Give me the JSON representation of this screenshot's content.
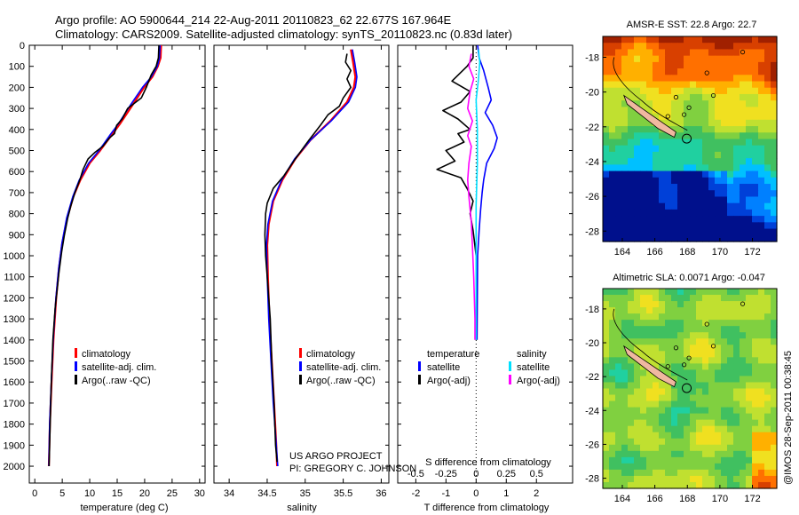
{
  "header": {
    "title_line1": "Argo profile: AO 5900644_214 22-Aug-2011 20110823_62 22.677S 167.964E",
    "title_line2": "Climatology: CARS2009. Satellite-adjusted climatology: synTS_20110823.nc (0.83d later)"
  },
  "credit": "US ARGO PROJECT",
  "pi": "PI: GREGORY C. JOHNSON",
  "timestamp": "@IMOS 28-Sep-2011 00:38:45",
  "colors": {
    "climatology": "#ff0000",
    "satellite": "#0000ff",
    "argo": "#000000",
    "sal_satellite": "#00e0ff",
    "sal_argo": "#ff00ff"
  },
  "depth_axis": {
    "ticks": [
      0,
      100,
      200,
      300,
      400,
      500,
      600,
      700,
      800,
      900,
      1000,
      1100,
      1200,
      1300,
      1400,
      1500,
      1600,
      1700,
      1800,
      1900,
      2000
    ],
    "labels": [
      "0",
      "100",
      "200",
      "300",
      "400",
      "500",
      "600",
      "700",
      "800",
      "900",
      "1000",
      "1100",
      "1200",
      "1300",
      "1400",
      "1500",
      "1600",
      "1700",
      "1800",
      "1900",
      "2000"
    ],
    "range": [
      0,
      2080
    ]
  },
  "chart_data": [
    {
      "type": "line",
      "name": "temperature",
      "xlabel": "temperature (deg C)",
      "xlim": [
        -1,
        31
      ],
      "xticks": [
        0,
        5,
        10,
        15,
        20,
        25,
        30
      ],
      "xtick_labels": [
        "0",
        "5",
        "10",
        "15",
        "20",
        "25",
        "30"
      ],
      "ylim": [
        2080,
        0
      ],
      "legend": {
        "placement": "lower-left",
        "entries": [
          "climatology",
          "satellite-adj. clim.",
          "Argo(..raw -QC)"
        ]
      },
      "series": [
        {
          "name": "climatology",
          "color": "#ff0000",
          "points": [
            [
              23,
              0
            ],
            [
              22.9,
              60
            ],
            [
              22.4,
              100
            ],
            [
              21.4,
              150
            ],
            [
              19.9,
              200
            ],
            [
              17.9,
              280
            ],
            [
              15.6,
              370
            ],
            [
              13.9,
              430
            ],
            [
              11.9,
              500
            ],
            [
              10,
              560
            ],
            [
              8.3,
              640
            ],
            [
              7,
              720
            ],
            [
              5.9,
              820
            ],
            [
              5,
              940
            ],
            [
              4.4,
              1060
            ],
            [
              3.9,
              1200
            ],
            [
              3.4,
              1400
            ],
            [
              3.05,
              1600
            ],
            [
              2.75,
              1800
            ],
            [
              2.55,
              2000
            ]
          ]
        },
        {
          "name": "satellite-adj. clim.",
          "color": "#0000ff",
          "points": [
            [
              22.8,
              0
            ],
            [
              22.7,
              60
            ],
            [
              22.3,
              100
            ],
            [
              21.2,
              150
            ],
            [
              19.6,
              200
            ],
            [
              17.5,
              280
            ],
            [
              15.3,
              370
            ],
            [
              13.6,
              430
            ],
            [
              11.7,
              500
            ],
            [
              9.8,
              560
            ],
            [
              8.1,
              640
            ],
            [
              6.9,
              720
            ],
            [
              5.8,
              820
            ],
            [
              4.95,
              940
            ],
            [
              4.35,
              1060
            ],
            [
              3.85,
              1200
            ],
            [
              3.35,
              1400
            ],
            [
              3,
              1600
            ],
            [
              2.7,
              1800
            ],
            [
              2.55,
              2000
            ]
          ]
        },
        {
          "name": "Argo(..raw -QC)",
          "color": "#000000",
          "points": [
            [
              22.6,
              0
            ],
            [
              22.5,
              60
            ],
            [
              22.1,
              100
            ],
            [
              21.2,
              140
            ],
            [
              20.3,
              200
            ],
            [
              19.4,
              250
            ],
            [
              16.9,
              300
            ],
            [
              15.9,
              350
            ],
            [
              14.9,
              380
            ],
            [
              14.5,
              420
            ],
            [
              13.6,
              440
            ],
            [
              12.4,
              480
            ],
            [
              10.9,
              510
            ],
            [
              9.7,
              540
            ],
            [
              8.8,
              590
            ],
            [
              8.2,
              640
            ],
            [
              7.3,
              700
            ],
            [
              6.6,
              760
            ],
            [
              6,
              820
            ],
            [
              5.4,
              900
            ],
            [
              4.9,
              980
            ],
            [
              4.4,
              1080
            ],
            [
              4,
              1180
            ],
            [
              3.7,
              1250
            ],
            [
              3.3,
              1400
            ],
            [
              3,
              1600
            ],
            [
              2.8,
              1800
            ],
            [
              2.6,
              2000
            ]
          ]
        }
      ]
    },
    {
      "type": "line",
      "name": "salinity",
      "xlabel": "salinity",
      "xlim": [
        33.8,
        36.1
      ],
      "xticks": [
        34,
        34.5,
        35,
        35.5,
        36
      ],
      "xtick_labels": [
        "34",
        "34.5",
        "35",
        "35.5",
        "36"
      ],
      "ylim": [
        2080,
        0
      ],
      "legend": {
        "placement": "lower-left",
        "entries": [
          "climatology",
          "satellite-adj. clim.",
          "Argo(..raw -QC)"
        ]
      },
      "series": [
        {
          "name": "climatology",
          "color": "#ff0000",
          "points": [
            [
              35.6,
              20
            ],
            [
              35.63,
              80
            ],
            [
              35.66,
              150
            ],
            [
              35.64,
              200
            ],
            [
              35.55,
              270
            ],
            [
              35.33,
              360
            ],
            [
              35.07,
              450
            ],
            [
              34.87,
              540
            ],
            [
              34.7,
              640
            ],
            [
              34.58,
              740
            ],
            [
              34.52,
              850
            ],
            [
              34.5,
              950
            ],
            [
              34.51,
              1100
            ],
            [
              34.53,
              1300
            ],
            [
              34.56,
              1500
            ],
            [
              34.59,
              1700
            ],
            [
              34.62,
              1900
            ],
            [
              34.63,
              2000
            ]
          ]
        },
        {
          "name": "satellite-adj. clim.",
          "color": "#0000ff",
          "points": [
            [
              35.62,
              20
            ],
            [
              35.65,
              80
            ],
            [
              35.68,
              150
            ],
            [
              35.66,
              200
            ],
            [
              35.57,
              270
            ],
            [
              35.34,
              360
            ],
            [
              35.07,
              450
            ],
            [
              34.86,
              540
            ],
            [
              34.69,
              640
            ],
            [
              34.57,
              740
            ],
            [
              34.51,
              850
            ],
            [
              34.49,
              950
            ],
            [
              34.5,
              1100
            ],
            [
              34.52,
              1300
            ],
            [
              34.55,
              1500
            ],
            [
              34.58,
              1700
            ],
            [
              34.62,
              1900
            ],
            [
              34.64,
              2000
            ]
          ]
        },
        {
          "name": "Argo(..raw -QC)",
          "color": "#000000",
          "points": [
            [
              35.55,
              40
            ],
            [
              35.53,
              80
            ],
            [
              35.6,
              120
            ],
            [
              35.55,
              160
            ],
            [
              35.6,
              200
            ],
            [
              35.5,
              250
            ],
            [
              35.45,
              290
            ],
            [
              35.3,
              330
            ],
            [
              35.2,
              380
            ],
            [
              35.05,
              450
            ],
            [
              34.95,
              500
            ],
            [
              34.85,
              550
            ],
            [
              34.72,
              620
            ],
            [
              34.58,
              680
            ],
            [
              34.5,
              750
            ],
            [
              34.48,
              800
            ],
            [
              34.47,
              900
            ],
            [
              34.48,
              1000
            ],
            [
              34.5,
              1100
            ],
            [
              34.52,
              1200
            ],
            [
              34.54,
              1300
            ],
            [
              34.56,
              1500
            ],
            [
              34.59,
              1700
            ],
            [
              34.61,
              1900
            ],
            [
              34.63,
              1980
            ]
          ]
        }
      ]
    },
    {
      "type": "line",
      "name": "difference",
      "xlabel": "T difference from climatology",
      "xlabel2": "S difference from climatology",
      "xlim": [
        -2.6,
        3.2
      ],
      "xticks": [
        -2,
        -1,
        0,
        1,
        2
      ],
      "xtick_labels": [
        "-2",
        "-1",
        "0",
        "1",
        "2"
      ],
      "s_ticks": [
        -0.5,
        -0.25,
        0,
        0.25,
        0.5
      ],
      "s_tick_labels": [
        "-0.5",
        "-0.25",
        "0",
        "0.25",
        "0.5"
      ],
      "ylim": [
        2080,
        0
      ],
      "legend": {
        "placement": "lower",
        "temperature_title": "temperature",
        "salinity_title": "salinity",
        "entries": [
          "satellite",
          "Argo(-adj)",
          "satellite",
          "Argo(-adj)"
        ]
      },
      "series": [
        {
          "name": "T satellite",
          "color": "#0000ff",
          "points": [
            [
              0.05,
              0
            ],
            [
              0.1,
              60
            ],
            [
              0.25,
              120
            ],
            [
              0.4,
              200
            ],
            [
              0.5,
              260
            ],
            [
              0.3,
              320
            ],
            [
              0.55,
              380
            ],
            [
              0.7,
              440
            ],
            [
              0.6,
              490
            ],
            [
              0.35,
              560
            ],
            [
              0.25,
              640
            ],
            [
              0.2,
              700
            ],
            [
              0.15,
              780
            ],
            [
              0.1,
              880
            ],
            [
              0.05,
              1000
            ],
            [
              0.03,
              1400
            ]
          ]
        },
        {
          "name": "T Argo(-adj)",
          "color": "#000000",
          "points": [
            [
              -0.1,
              0
            ],
            [
              -0.1,
              60
            ],
            [
              -0.3,
              100
            ],
            [
              -0.8,
              170
            ],
            [
              -0.2,
              220
            ],
            [
              -0.5,
              270
            ],
            [
              -1.1,
              310
            ],
            [
              -0.6,
              350
            ],
            [
              -0.2,
              400
            ],
            [
              -0.6,
              420
            ],
            [
              -0.4,
              460
            ],
            [
              -1,
              500
            ],
            [
              -0.7,
              550
            ],
            [
              -1.3,
              590
            ],
            [
              -0.5,
              630
            ],
            [
              -0.3,
              680
            ],
            [
              -0.1,
              740
            ],
            [
              -0.2,
              800
            ],
            [
              -0.1,
              880
            ],
            [
              0,
              1000
            ],
            [
              0,
              1200
            ],
            [
              0,
              1400
            ]
          ]
        },
        {
          "name": "S satellite",
          "color": "#00e0ff",
          "points": [
            [
              0.02,
              20
            ],
            [
              0.03,
              80
            ],
            [
              0.02,
              160
            ],
            [
              0,
              260
            ],
            [
              0.01,
              400
            ],
            [
              0.01,
              560
            ],
            [
              0,
              760
            ],
            [
              0,
              1000
            ],
            [
              0,
              1400
            ]
          ]
        },
        {
          "name": "S Argo(-adj)",
          "color": "#ff00ff",
          "points": [
            [
              -0.04,
              40
            ],
            [
              -0.06,
              100
            ],
            [
              -0.02,
              160
            ],
            [
              -0.05,
              220
            ],
            [
              -0.07,
              300
            ],
            [
              -0.03,
              360
            ],
            [
              -0.07,
              430
            ],
            [
              -0.04,
              480
            ],
            [
              -0.06,
              560
            ],
            [
              -0.07,
              640
            ],
            [
              -0.06,
              720
            ],
            [
              -0.04,
              840
            ],
            [
              -0.03,
              960
            ],
            [
              -0.02,
              1100
            ],
            [
              -0.01,
              1300
            ],
            [
              -0.01,
              1400
            ]
          ]
        }
      ]
    }
  ],
  "maps": [
    {
      "name": "sst",
      "title": "AMSR-E SST: 22.8 Argo: 22.7",
      "yticks": [
        "-18",
        "-20",
        "-22",
        "-24",
        "-26",
        "-28"
      ],
      "xticks": [
        "164",
        "166",
        "168",
        "170",
        "172"
      ],
      "palette": [
        "#00108c",
        "#0040d8",
        "#0080ff",
        "#00c0ff",
        "#20d0a0",
        "#40c060",
        "#80d040",
        "#c0e030",
        "#f0e020",
        "#ffb000",
        "#ff7000",
        "#d84000",
        "#a02000"
      ]
    },
    {
      "name": "sla",
      "title": "Altimetric SLA: 0.0071 Argo: -0.047",
      "yticks": [
        "-18",
        "-20",
        "-22",
        "-24",
        "-26",
        "-28"
      ],
      "xticks": [
        "164",
        "166",
        "168",
        "170",
        "172"
      ],
      "palette": [
        "#00108c",
        "#0040d8",
        "#0080ff",
        "#00c0ff",
        "#20d0a0",
        "#40c060",
        "#80d040",
        "#c0e030",
        "#f0e020",
        "#ffb000",
        "#ff7000",
        "#d84000",
        "#a02000"
      ]
    }
  ]
}
